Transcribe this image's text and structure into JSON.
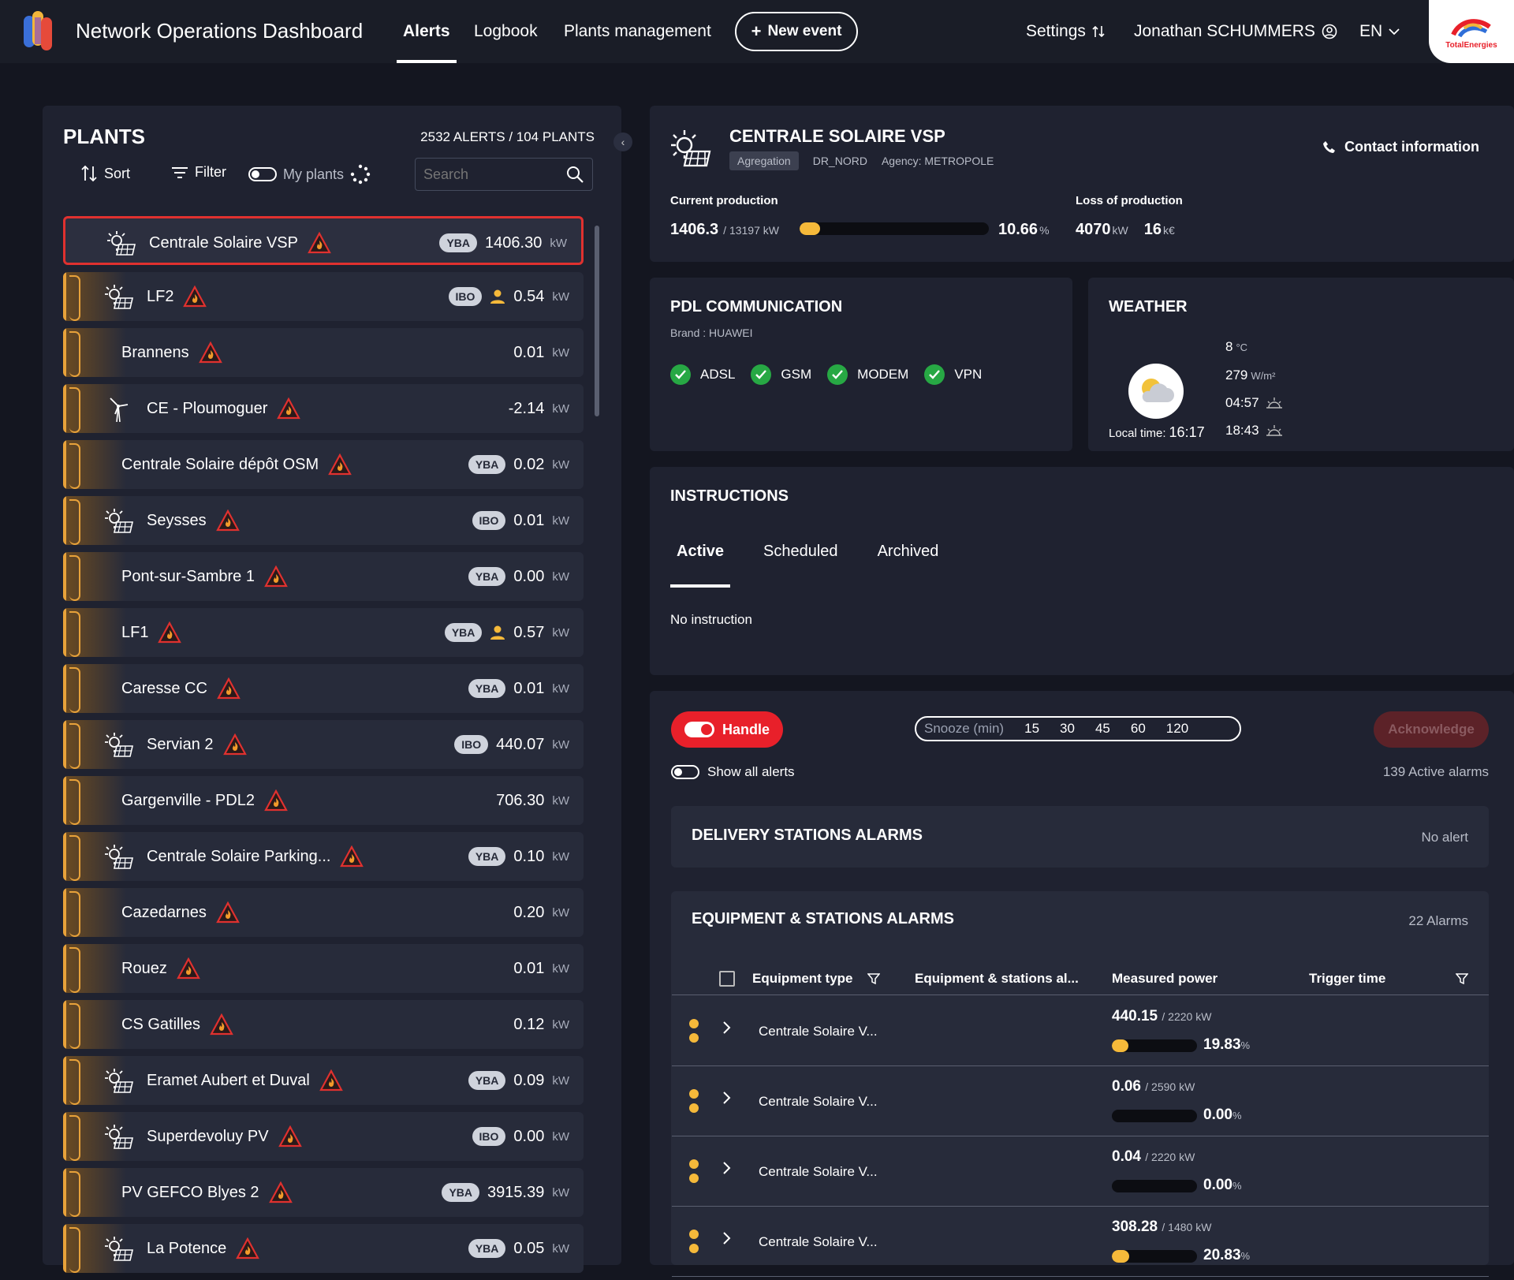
{
  "header": {
    "app_title": "Network Operations Dashboard",
    "nav": [
      "Alerts",
      "Logbook",
      "Plants management"
    ],
    "new_event": "New event",
    "settings": "Settings",
    "user": "Jonathan SCHUMMERS",
    "lang": "EN",
    "brand": "TotalEnergies"
  },
  "plants": {
    "title": "PLANTS",
    "count": "2532 ALERTS / 104 PLANTS",
    "sort": "Sort",
    "filter": "Filter",
    "my_plants": "My plants",
    "search_placeholder": "Search",
    "rows": [
      {
        "name": "Centrale Solaire VSP",
        "icon": "solar",
        "badge": "YBA",
        "person": false,
        "value": "1406.30",
        "unit": "kW",
        "selected": true
      },
      {
        "name": "LF2",
        "icon": "solar",
        "badge": "IBO",
        "person": true,
        "value": "0.54",
        "unit": "kW"
      },
      {
        "name": "Brannens",
        "icon": "",
        "badge": "",
        "person": false,
        "value": "0.01",
        "unit": "kW"
      },
      {
        "name": "CE - Ploumoguer",
        "icon": "wind",
        "badge": "",
        "person": false,
        "value": "-2.14",
        "unit": "kW"
      },
      {
        "name": "Centrale Solaire dépôt OSM",
        "icon": "",
        "badge": "YBA",
        "person": false,
        "value": "0.02",
        "unit": "kW"
      },
      {
        "name": "Seysses",
        "icon": "solar",
        "badge": "IBO",
        "person": false,
        "value": "0.01",
        "unit": "kW"
      },
      {
        "name": "Pont-sur-Sambre 1",
        "icon": "",
        "badge": "YBA",
        "person": false,
        "value": "0.00",
        "unit": "kW"
      },
      {
        "name": "LF1",
        "icon": "",
        "badge": "YBA",
        "person": true,
        "value": "0.57",
        "unit": "kW"
      },
      {
        "name": "Caresse CC",
        "icon": "",
        "badge": "YBA",
        "person": false,
        "value": "0.01",
        "unit": "kW"
      },
      {
        "name": "Servian 2",
        "icon": "solar",
        "badge": "IBO",
        "person": false,
        "value": "440.07",
        "unit": "kW"
      },
      {
        "name": "Gargenville - PDL2",
        "icon": "",
        "badge": "",
        "person": false,
        "value": "706.30",
        "unit": "kW"
      },
      {
        "name": "Centrale Solaire Parking...",
        "icon": "solar",
        "badge": "YBA",
        "person": false,
        "value": "0.10",
        "unit": "kW"
      },
      {
        "name": "Cazedarnes",
        "icon": "",
        "badge": "",
        "person": false,
        "value": "0.20",
        "unit": "kW"
      },
      {
        "name": "Rouez",
        "icon": "",
        "badge": "",
        "person": false,
        "value": "0.01",
        "unit": "kW"
      },
      {
        "name": "CS Gatilles",
        "icon": "",
        "badge": "",
        "person": false,
        "value": "0.12",
        "unit": "kW"
      },
      {
        "name": "Eramet Aubert et Duval",
        "icon": "solar",
        "badge": "YBA",
        "person": false,
        "value": "0.09",
        "unit": "kW"
      },
      {
        "name": "Superdevoluy PV",
        "icon": "solar",
        "badge": "IBO",
        "person": false,
        "value": "0.00",
        "unit": "kW"
      },
      {
        "name": "PV GEFCO Blyes 2",
        "icon": "",
        "badge": "YBA",
        "person": false,
        "value": "3915.39",
        "unit": "kW"
      },
      {
        "name": "La Potence",
        "icon": "solar",
        "badge": "YBA",
        "person": false,
        "value": "0.05",
        "unit": "kW"
      }
    ]
  },
  "plant_detail": {
    "name": "CENTRALE SOLAIRE VSP",
    "tag": "Agregation",
    "region": "DR_NORD",
    "agency": "Agency: METROPOLE",
    "contact": "Contact information",
    "current_label": "Current production",
    "current_value": "1406.3",
    "current_cap": "/ 13197 kW",
    "current_pct": "10.66",
    "current_fraction": 0.1066,
    "loss_label": "Loss of production",
    "loss_kw": "4070",
    "loss_kw_unit": "kW",
    "loss_eur": "16",
    "loss_eur_unit": "k€"
  },
  "pdl": {
    "title": "PDL COMMUNICATION",
    "brand": "Brand : HUAWEI",
    "items": [
      "ADSL",
      "GSM",
      "MODEM",
      "VPN"
    ]
  },
  "weather": {
    "title": "WEATHER",
    "temp": "8",
    "temp_unit": "°C",
    "irradiance": "279",
    "irradiance_unit": "W/m²",
    "sunrise": "04:57",
    "sunset": "18:43",
    "local_time_label": "Local time:",
    "local_time": "16:17"
  },
  "instructions": {
    "title": "INSTRUCTIONS",
    "tabs": [
      "Active",
      "Scheduled",
      "Archived"
    ],
    "empty": "No instruction"
  },
  "alarms": {
    "handle": "Handle",
    "snooze_label": "Snooze (min)",
    "snooze_options": [
      "15",
      "30",
      "45",
      "60",
      "120"
    ],
    "acknowledge": "Acknowledge",
    "show_all": "Show all alerts",
    "active_count": "139 Active alarms",
    "delivery_title": "DELIVERY STATIONS ALARMS",
    "delivery_status": "No alert",
    "equipment_title": "EQUIPMENT & STATIONS ALARMS",
    "equipment_count": "22 Alarms",
    "columns": [
      "Equipment type",
      "Equipment & stations al...",
      "Measured power",
      "Trigger time"
    ],
    "rows": [
      {
        "name": "Centrale Solaire V...",
        "power": "440.15",
        "cap": "/ 2220 kW",
        "pct": "19.83",
        "fraction": 0.1983
      },
      {
        "name": "Centrale Solaire V...",
        "power": "0.06",
        "cap": "/ 2590 kW",
        "pct": "0.00",
        "fraction": 0
      },
      {
        "name": "Centrale Solaire V...",
        "power": "0.04",
        "cap": "/ 2220 kW",
        "pct": "0.00",
        "fraction": 0
      },
      {
        "name": "Centrale Solaire V...",
        "power": "308.28",
        "cap": "/ 1480 kW",
        "pct": "20.83",
        "fraction": 0.2083
      }
    ]
  },
  "colors": {
    "accent": "#e8a23a",
    "alert_red": "#e0312f",
    "progress": "#f5b93a",
    "ok_green": "#27a844"
  }
}
